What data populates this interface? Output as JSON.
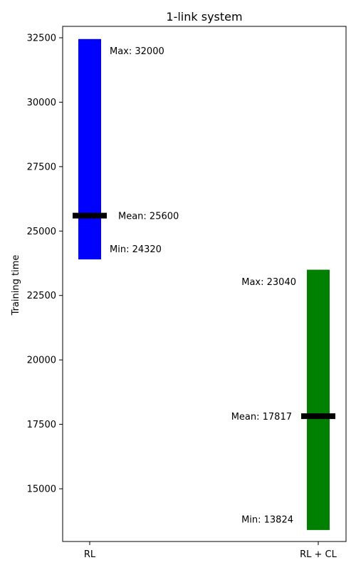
{
  "chart_data": {
    "type": "bar",
    "title": "1-link system",
    "xlabel": "",
    "ylabel": "Training time",
    "categories": [
      "RL",
      "RL + CL"
    ],
    "ylim": [
      13000,
      33000
    ],
    "yticks": [
      15000,
      17500,
      20000,
      22500,
      25000,
      27500,
      30000,
      32500
    ],
    "grid": false,
    "legend": "none",
    "series": [
      {
        "category": "RL",
        "bar_bottom": 23900,
        "bar_top": 32450,
        "mean": 25600,
        "color": "#0000ff",
        "labels": {
          "max": "Max: 32000",
          "mean": "Mean: 25600",
          "min": "Min: 24320"
        },
        "label_side": "right"
      },
      {
        "category": "RL + CL",
        "bar_bottom": 13400,
        "bar_top": 23500,
        "mean": 17817,
        "color": "#008000",
        "labels": {
          "max": "Max: 23040",
          "mean": "Mean: 17817",
          "min": "Min: 13824"
        },
        "label_side": "left"
      }
    ],
    "mean_marker_color": "#000000"
  }
}
